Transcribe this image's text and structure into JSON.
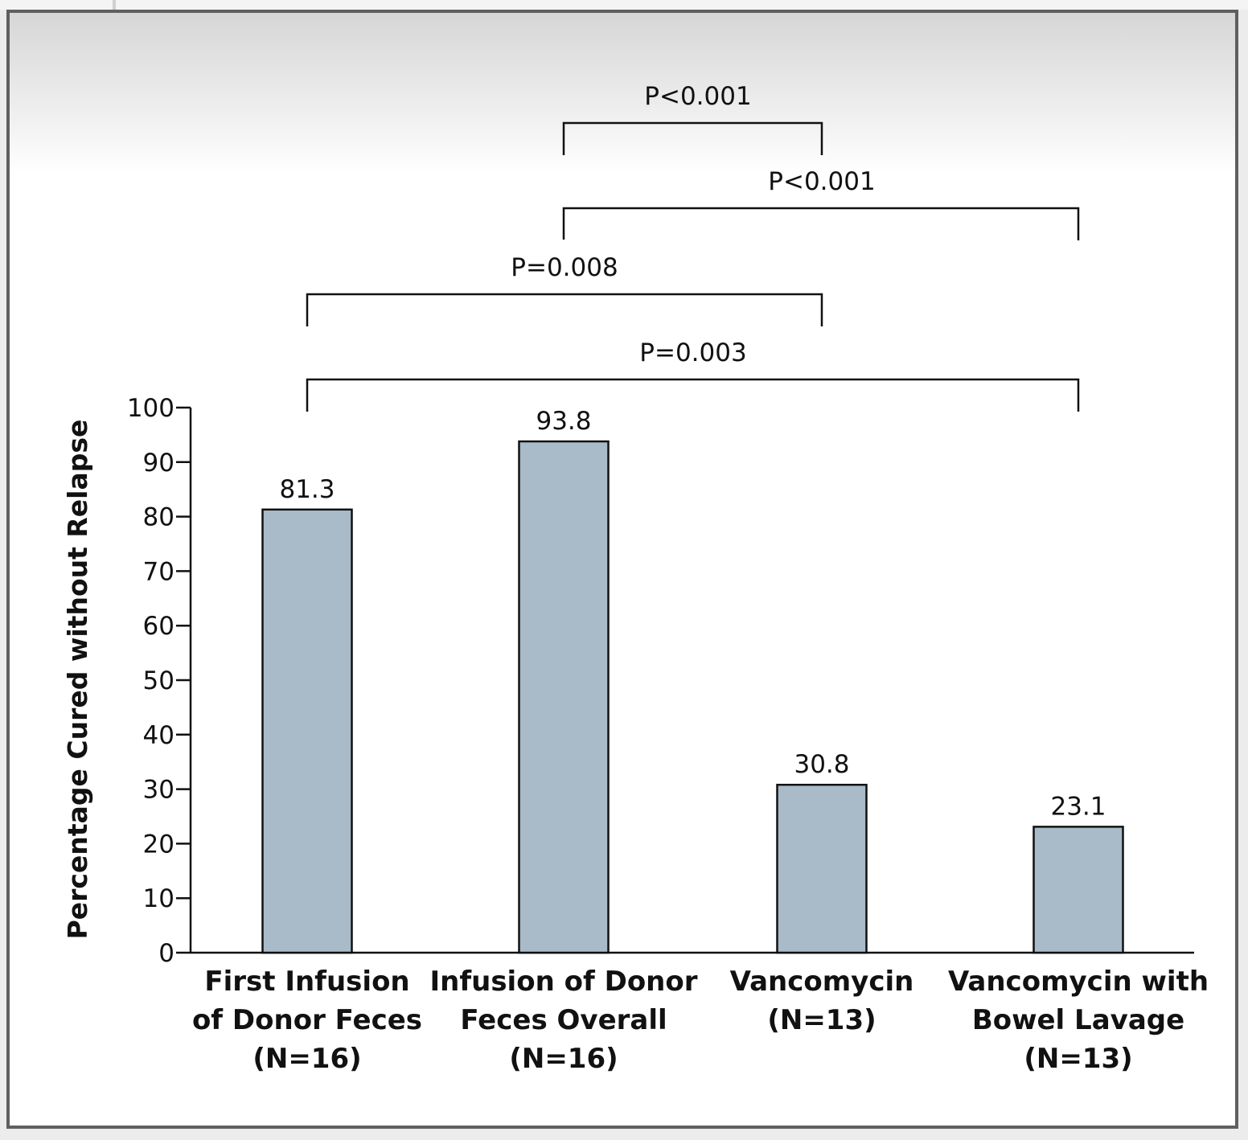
{
  "chart_data": {
    "type": "bar",
    "ylabel": "Percentage Cured without Relapse",
    "ylim": [
      0,
      100
    ],
    "yticks": [
      0,
      10,
      20,
      30,
      40,
      50,
      60,
      70,
      80,
      90,
      100
    ],
    "categories": [
      [
        "First Infusion",
        "of Donor Feces",
        "(N=16)"
      ],
      [
        "Infusion of Donor",
        "Feces Overall",
        "(N=16)"
      ],
      [
        "Vancomycin",
        "(N=13)"
      ],
      [
        "Vancomycin with",
        "Bowel Lavage",
        "(N=13)"
      ]
    ],
    "values": [
      81.3,
      93.8,
      30.8,
      23.1
    ],
    "value_labels": [
      "81.3",
      "93.8",
      "30.8",
      "23.1"
    ],
    "bar_color": "#a9bbc8",
    "comparisons": [
      {
        "from": 1,
        "to": 2,
        "label": "P<0.001"
      },
      {
        "from": 1,
        "to": 3,
        "label": "P<0.001"
      },
      {
        "from": 0,
        "to": 2,
        "label": "P=0.008"
      },
      {
        "from": 0,
        "to": 3,
        "label": "P=0.003"
      }
    ],
    "grid": false,
    "legend": "none"
  }
}
